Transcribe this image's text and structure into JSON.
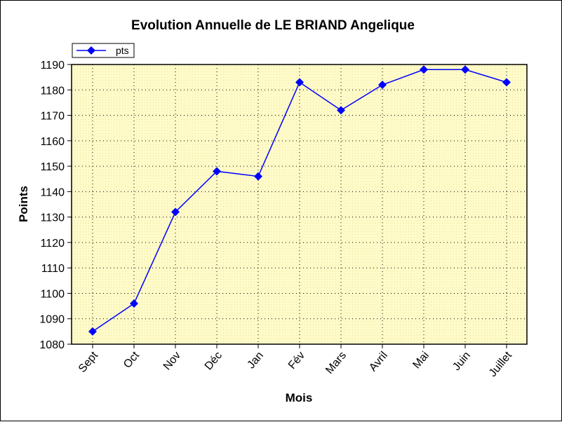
{
  "chart_data": {
    "type": "line",
    "title": "Evolution Annuelle de LE BRIAND Angelique",
    "xlabel": "Mois",
    "ylabel": "Points",
    "categories": [
      "Sept",
      "Oct",
      "Nov",
      "Déc",
      "Jan",
      "Fév",
      "Mars",
      "Avril",
      "Mai",
      "Juin",
      "Juillet"
    ],
    "ylim": [
      1080,
      1190
    ],
    "yticks": [
      1080,
      1090,
      1100,
      1110,
      1120,
      1130,
      1140,
      1150,
      1160,
      1170,
      1180,
      1190
    ],
    "grid": true,
    "legend_position": "top-left",
    "series": [
      {
        "name": "pts",
        "color": "#0000ff",
        "marker": "diamond",
        "values": [
          1085,
          1096,
          1132,
          1148,
          1146,
          1183,
          1172,
          1182,
          1188,
          1188,
          1183
        ]
      }
    ],
    "plot_background": "#fffbc8"
  }
}
